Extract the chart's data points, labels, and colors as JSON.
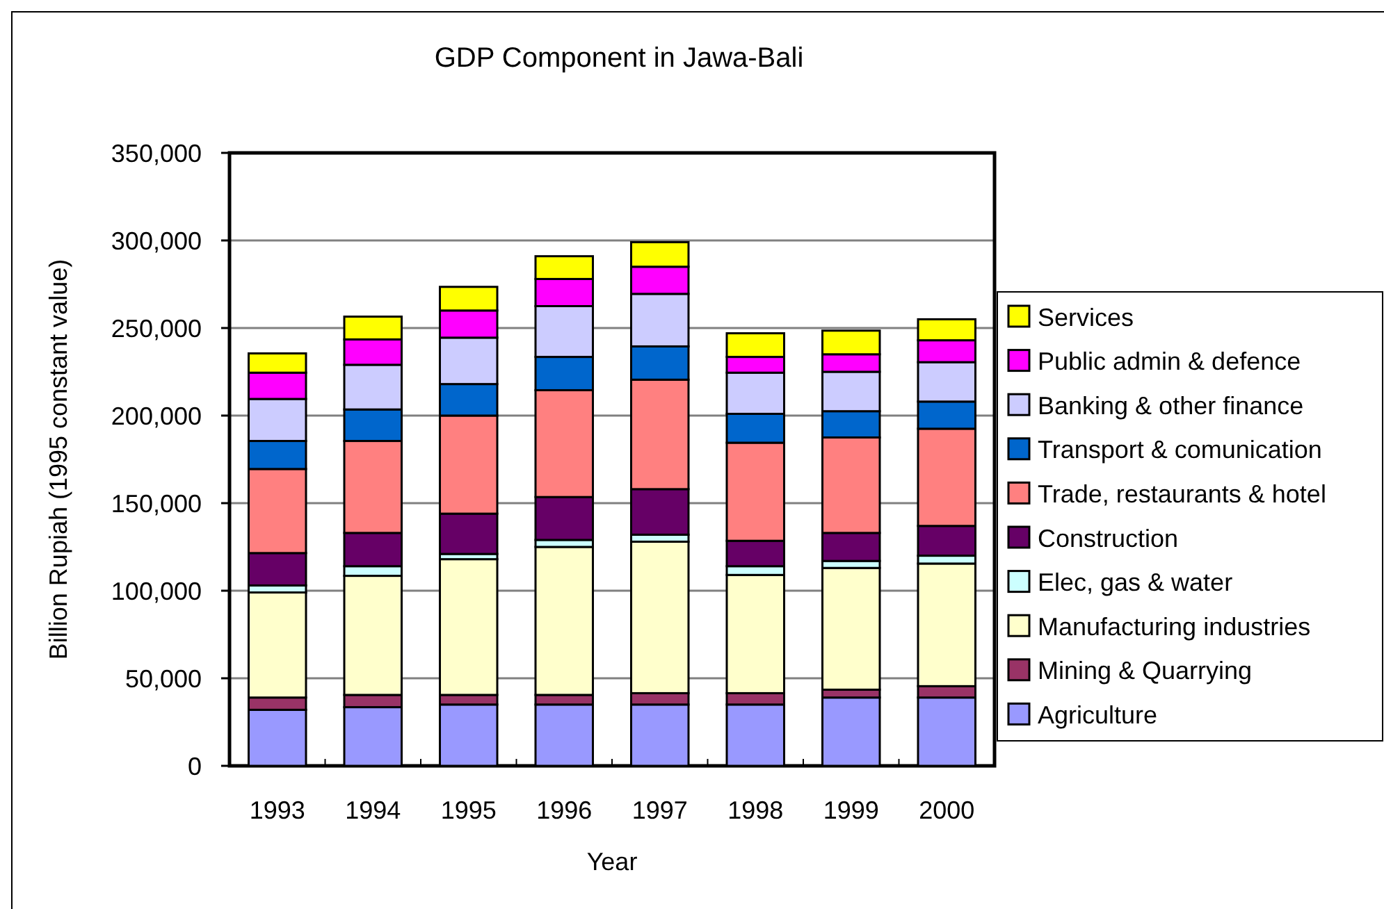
{
  "chart_data": {
    "type": "bar",
    "title": "GDP Component in Jawa-Bali",
    "xlabel": "Year",
    "ylabel": "Billion Rupiah (1995 constant value)",
    "categories": [
      "1993",
      "1994",
      "1995",
      "1996",
      "1997",
      "1998",
      "1999",
      "2000"
    ],
    "stacked": true,
    "ylim": [
      0,
      350000
    ],
    "yticks": [
      {
        "value": 0,
        "label": "0"
      },
      {
        "value": 50000,
        "label": "50,000"
      },
      {
        "value": 100000,
        "label": "100,000"
      },
      {
        "value": 150000,
        "label": "150,000"
      },
      {
        "value": 200000,
        "label": "200,000"
      },
      {
        "value": 250000,
        "label": "250,000"
      },
      {
        "value": 300000,
        "label": "300,000"
      },
      {
        "value": 350000,
        "label": "350,000"
      }
    ],
    "grid": "y",
    "legend": "right",
    "series": [
      {
        "name": "Agriculture",
        "color": "#9999ff",
        "values": [
          32000,
          33500,
          35000,
          35000,
          35000,
          35000,
          39000,
          39000
        ]
      },
      {
        "name": "Mining & Quarrying",
        "color": "#993366",
        "values": [
          7000,
          7000,
          5500,
          5500,
          6500,
          6500,
          4500,
          6500
        ]
      },
      {
        "name": "Manufacturing industries",
        "color": "#ffffcc",
        "values": [
          60000,
          68000,
          77500,
          84500,
          86500,
          67500,
          69500,
          70000
        ]
      },
      {
        "name": "Elec, gas & water",
        "color": "#ccffff",
        "values": [
          4000,
          5500,
          3000,
          4000,
          4000,
          5000,
          4000,
          4500
        ]
      },
      {
        "name": "Construction",
        "color": "#660066",
        "values": [
          18500,
          19000,
          23000,
          24500,
          26000,
          14500,
          16000,
          17000
        ]
      },
      {
        "name": "Trade, restaurants & hotel",
        "color": "#ff8080",
        "values": [
          48000,
          52500,
          56000,
          61000,
          62500,
          56000,
          54500,
          55500
        ]
      },
      {
        "name": "Transport & comunication",
        "color": "#0066cc",
        "values": [
          16000,
          18000,
          18000,
          19000,
          19000,
          16500,
          15000,
          15500
        ]
      },
      {
        "name": "Banking & other finance",
        "color": "#ccccff",
        "values": [
          24000,
          25500,
          26500,
          29000,
          30000,
          23500,
          22500,
          22500
        ]
      },
      {
        "name": "Public admin & defence",
        "color": "#ff00ff",
        "values": [
          15000,
          14500,
          15500,
          15500,
          15500,
          9000,
          10000,
          12500
        ]
      },
      {
        "name": "Services",
        "color": "#ffff00",
        "values": [
          11000,
          13000,
          13500,
          13000,
          14000,
          13500,
          13500,
          12000
        ]
      }
    ]
  }
}
